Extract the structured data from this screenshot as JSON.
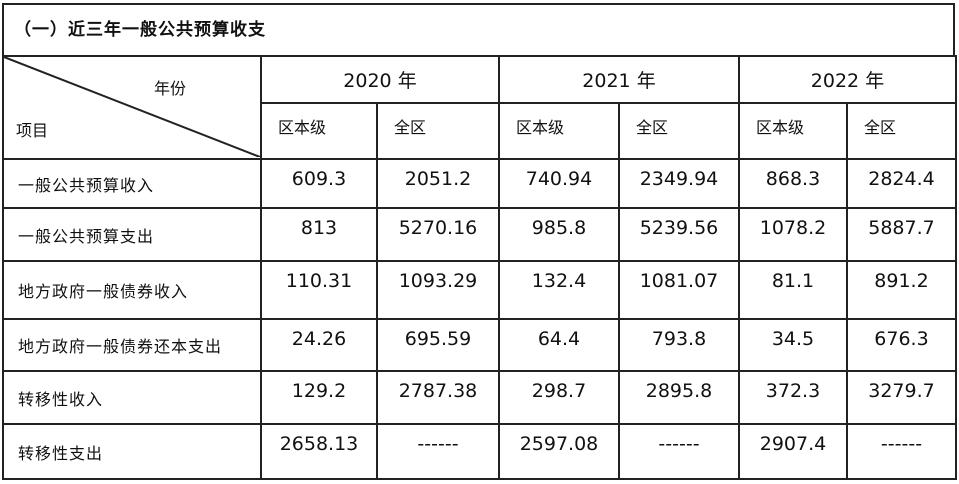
{
  "title": "（一）近三年一般公共预算收支",
  "header": {
    "corner_top": "年份",
    "corner_bottom": "项目",
    "years": [
      "2020 年",
      "2021 年",
      "2022 年"
    ],
    "sub_columns": [
      "区本级",
      "全区",
      "区本级",
      "全区",
      "区本级",
      "全区"
    ]
  },
  "rows": [
    {
      "label": "一般公共预算收入",
      "values": [
        "609.3",
        "2051.2",
        "740.94",
        "2349.94",
        "868.3",
        "2824.4"
      ]
    },
    {
      "label": "一般公共预算支出",
      "values": [
        "813",
        "5270.16",
        "985.8",
        "5239.56",
        "1078.2",
        "5887.7"
      ]
    },
    {
      "label": "地方政府一般债券收入",
      "values": [
        "110.31",
        "1093.29",
        "132.4",
        "1081.07",
        "81.1",
        "891.2"
      ]
    },
    {
      "label": "地方政府一般债券还本支出",
      "values": [
        "24.26",
        "695.59",
        "64.4",
        "793.8",
        "34.5",
        "676.3"
      ]
    },
    {
      "label": "转移性收入",
      "values": [
        "129.2",
        "2787.38",
        "298.7",
        "2895.8",
        "372.3",
        "3279.7"
      ]
    },
    {
      "label": "转移性支出",
      "values": [
        "2658.13",
        "------",
        "2597.08",
        "------",
        "2907.4",
        "------"
      ]
    }
  ]
}
